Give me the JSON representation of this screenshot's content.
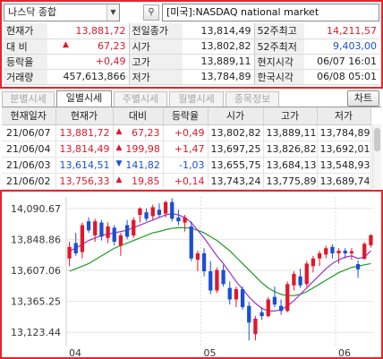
{
  "search": {
    "name": "나스닥 종합",
    "market": "[미국]:NASDAQ national market",
    "search_icon": "magnifier-icon"
  },
  "info": {
    "current_label": "현재가",
    "current": "13,881,72",
    "change_label": "대 비",
    "change": "67,23",
    "rate_label": "등락율",
    "rate": "+0,49",
    "volume_label": "거래량",
    "volume": "457,613,866",
    "prev_close_label": "전일종가",
    "prev_close": "13,814,49",
    "open_label": "시가",
    "open": "13,802,82",
    "high_label": "고가",
    "high": "13,889,11",
    "low_label": "저가",
    "low": "13,784,89",
    "wk52_high_label": "52주최고",
    "wk52_high": "14,211,57",
    "wk52_low_label": "52주최저",
    "wk52_low": "9,403,00",
    "local_time_label": "현지시각",
    "local_time": "06/07 16:01",
    "kr_time_label": "한국시각",
    "kr_time": "06/08 05:01"
  },
  "tabs": [
    {
      "label": "분별시세",
      "active": false
    },
    {
      "label": "일별시세",
      "active": true
    },
    {
      "label": "주별시세",
      "active": false
    },
    {
      "label": "월별시세",
      "active": false
    },
    {
      "label": "종목정보",
      "active": false
    }
  ],
  "chart_button": "차트",
  "grid": {
    "headers": [
      "현재일자",
      "현재가",
      "대비",
      "등락율",
      "시가",
      "고가",
      "저가"
    ],
    "rows": [
      {
        "date": "21/06/07",
        "close": "13,881,72",
        "change": "67,23",
        "dir": "up",
        "rate": "+0,49",
        "open": "13,802,82",
        "high": "13,889,11",
        "low": "13,784,89"
      },
      {
        "date": "21/06/04",
        "close": "13,814,49",
        "change": "199,98",
        "dir": "up",
        "rate": "+1,47",
        "open": "13,697,25",
        "high": "13,826,82",
        "low": "13,692,01"
      },
      {
        "date": "21/06/03",
        "close": "13,614,51",
        "change": "141,82",
        "dir": "down",
        "rate": "-1,03",
        "open": "13,655,75",
        "high": "13,684,13",
        "low": "13,548,93"
      },
      {
        "date": "21/06/02",
        "close": "13,756,33",
        "change": "19,85",
        "dir": "up",
        "rate": "+0,14",
        "open": "13,743,24",
        "high": "13,775,89",
        "low": "13,689,74"
      }
    ]
  },
  "colors": {
    "up": "#e0182a",
    "down": "#1a4fd4",
    "ma_short": "#9b30d0",
    "ma_long": "#1f9a22",
    "frame": "#e8242c"
  },
  "chart_data": {
    "type": "candlestick",
    "y_ticks": [
      "14,090.67",
      "13,848.86",
      "13,607.06",
      "13,365.25",
      "13,123.44"
    ],
    "y_tick_values": [
      14090.67,
      13848.86,
      13607.06,
      13365.25,
      13123.44
    ],
    "ylim": [
      13020,
      14180
    ],
    "x_ticks": [
      {
        "label": "04",
        "index": 0
      },
      {
        "label": "05",
        "index": 21
      },
      {
        "label": "06",
        "index": 42
      }
    ],
    "candles": [
      {
        "o": 13700,
        "h": 13830,
        "l": 13640,
        "c": 13790
      },
      {
        "o": 13820,
        "h": 13900,
        "l": 13720,
        "c": 13740
      },
      {
        "o": 13750,
        "h": 13980,
        "l": 13700,
        "c": 13960
      },
      {
        "o": 13990,
        "h": 14020,
        "l": 13900,
        "c": 13920
      },
      {
        "o": 13880,
        "h": 14010,
        "l": 13830,
        "c": 13990
      },
      {
        "o": 13980,
        "h": 14000,
        "l": 13840,
        "c": 13870
      },
      {
        "o": 13860,
        "h": 13980,
        "l": 13820,
        "c": 13950
      },
      {
        "o": 13940,
        "h": 13960,
        "l": 13800,
        "c": 13830
      },
      {
        "o": 13800,
        "h": 13900,
        "l": 13720,
        "c": 13880
      },
      {
        "o": 13960,
        "h": 14000,
        "l": 13850,
        "c": 13870
      },
      {
        "o": 13880,
        "h": 14020,
        "l": 13860,
        "c": 14000
      },
      {
        "o": 14040,
        "h": 14100,
        "l": 13980,
        "c": 14090
      },
      {
        "o": 14060,
        "h": 14090,
        "l": 13990,
        "c": 14010
      },
      {
        "o": 14030,
        "h": 14120,
        "l": 14000,
        "c": 14100
      },
      {
        "o": 14080,
        "h": 14130,
        "l": 14020,
        "c": 14040
      },
      {
        "o": 14050,
        "h": 14150,
        "l": 14020,
        "c": 14140
      },
      {
        "o": 14140,
        "h": 14170,
        "l": 13990,
        "c": 14010
      },
      {
        "o": 14020,
        "h": 14080,
        "l": 13960,
        "c": 13990
      },
      {
        "o": 13980,
        "h": 14040,
        "l": 13910,
        "c": 14020
      },
      {
        "o": 13950,
        "h": 13990,
        "l": 13680,
        "c": 13700
      },
      {
        "o": 13690,
        "h": 13760,
        "l": 13600,
        "c": 13740
      },
      {
        "o": 13740,
        "h": 13780,
        "l": 13560,
        "c": 13600
      },
      {
        "o": 13600,
        "h": 13680,
        "l": 13420,
        "c": 13450
      },
      {
        "o": 13450,
        "h": 13630,
        "l": 13430,
        "c": 13610
      },
      {
        "o": 13610,
        "h": 13650,
        "l": 13480,
        "c": 13500
      },
      {
        "o": 13470,
        "h": 13520,
        "l": 13340,
        "c": 13380
      },
      {
        "o": 13380,
        "h": 13480,
        "l": 13320,
        "c": 13460
      },
      {
        "o": 13460,
        "h": 13480,
        "l": 13300,
        "c": 13320
      },
      {
        "o": 13330,
        "h": 13360,
        "l": 13060,
        "c": 13200
      },
      {
        "o": 13110,
        "h": 13250,
        "l": 13060,
        "c": 13230
      },
      {
        "o": 13280,
        "h": 13320,
        "l": 13220,
        "c": 13250
      },
      {
        "o": 13250,
        "h": 13400,
        "l": 13240,
        "c": 13380
      },
      {
        "o": 13400,
        "h": 13480,
        "l": 13320,
        "c": 13340
      },
      {
        "o": 13330,
        "h": 13380,
        "l": 13260,
        "c": 13290
      },
      {
        "o": 13290,
        "h": 13520,
        "l": 13280,
        "c": 13500
      },
      {
        "o": 13490,
        "h": 13600,
        "l": 13450,
        "c": 13580
      },
      {
        "o": 13560,
        "h": 13620,
        "l": 13470,
        "c": 13490
      },
      {
        "o": 13500,
        "h": 13680,
        "l": 13480,
        "c": 13660
      },
      {
        "o": 13640,
        "h": 13720,
        "l": 13590,
        "c": 13700
      },
      {
        "o": 13700,
        "h": 13760,
        "l": 13640,
        "c": 13740
      },
      {
        "o": 13730,
        "h": 13800,
        "l": 13700,
        "c": 13780
      },
      {
        "o": 13790,
        "h": 13810,
        "l": 13700,
        "c": 13740
      },
      {
        "o": 13740,
        "h": 13780,
        "l": 13660,
        "c": 13760
      },
      {
        "o": 13760,
        "h": 13780,
        "l": 13700,
        "c": 13740
      },
      {
        "o": 13740,
        "h": 13780,
        "l": 13690,
        "c": 13756
      },
      {
        "o": 13656,
        "h": 13684,
        "l": 13549,
        "c": 13615
      },
      {
        "o": 13697,
        "h": 13827,
        "l": 13692,
        "c": 13814
      },
      {
        "o": 13803,
        "h": 13889,
        "l": 13785,
        "c": 13882
      }
    ],
    "ma_short": [
      13760,
      13780,
      13810,
      13840,
      13860,
      13880,
      13890,
      13900,
      13910,
      13920,
      13940,
      13960,
      13980,
      14000,
      14020,
      14040,
      14050,
      14040,
      14020,
      13980,
      13920,
      13860,
      13790,
      13720,
      13660,
      13590,
      13520,
      13460,
      13400,
      13350,
      13310,
      13290,
      13290,
      13300,
      13330,
      13370,
      13420,
      13470,
      13520,
      13570,
      13620,
      13660,
      13690,
      13710,
      13720,
      13700,
      13710,
      13760
    ],
    "ma_long": [
      13600,
      13620,
      13640,
      13660,
      13690,
      13720,
      13750,
      13780,
      13800,
      13820,
      13840,
      13860,
      13880,
      13900,
      13910,
      13925,
      13935,
      13940,
      13940,
      13935,
      13920,
      13900,
      13870,
      13840,
      13800,
      13760,
      13710,
      13660,
      13610,
      13560,
      13510,
      13470,
      13440,
      13420,
      13410,
      13410,
      13420,
      13440,
      13470,
      13500,
      13530,
      13560,
      13590,
      13610,
      13630,
      13640,
      13650,
      13660
    ]
  }
}
